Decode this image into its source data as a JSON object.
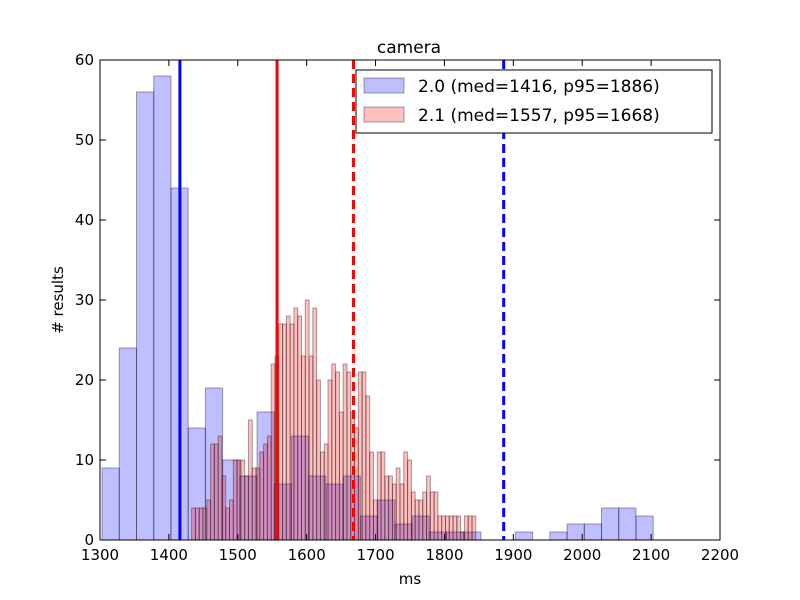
{
  "chart_data": {
    "type": "bar",
    "title": "camera",
    "xlabel": "ms",
    "ylabel": "# results",
    "xlim": [
      1300,
      2200
    ],
    "ylim": [
      0,
      60
    ],
    "xticks": [
      1300,
      1400,
      1500,
      1600,
      1700,
      1800,
      1900,
      2000,
      2100,
      2200
    ],
    "yticks": [
      0,
      10,
      20,
      30,
      40,
      50,
      60
    ],
    "grid": false,
    "legend_placement": "top-right",
    "series": [
      {
        "name": "2.0 (med=1416, p95=1886)",
        "color": "#0000ff",
        "bin_start": 1303,
        "bin_width": 25,
        "values": [
          9,
          24,
          56,
          58,
          44,
          14,
          19,
          10,
          8,
          16,
          7,
          13,
          8,
          7,
          8,
          3,
          5,
          2,
          3,
          1,
          1,
          1,
          0,
          0,
          1,
          0,
          1,
          2,
          2,
          4,
          4,
          3
        ],
        "median": 1416,
        "p95": 1886
      },
      {
        "name": "2.1 (med=1557, p95=1668)",
        "color": "#ff0000",
        "bin_start": 1433,
        "bin_width": 5.5,
        "values": [
          4,
          4,
          4,
          4,
          5,
          12,
          12,
          13,
          8,
          4,
          5,
          10,
          10,
          10,
          8,
          15,
          9,
          9,
          11,
          12,
          13,
          22,
          23,
          27,
          27,
          28,
          27,
          29,
          28,
          23,
          30,
          23,
          29,
          20,
          11,
          12,
          20,
          22,
          21,
          16,
          22,
          21,
          16,
          14,
          21,
          21,
          18,
          11,
          5,
          11,
          11,
          8,
          8,
          7,
          9,
          7,
          11,
          10,
          6,
          5,
          5,
          6,
          8,
          6,
          6,
          3,
          3,
          3,
          3,
          3,
          3,
          1,
          3,
          3,
          3
        ]
      }
    ],
    "vlines": [
      {
        "x": 1416,
        "color": "#0000ff",
        "style": "solid"
      },
      {
        "x": 1886,
        "color": "#0000ff",
        "style": "dashed"
      },
      {
        "x": 1557,
        "color": "#ff0000",
        "style": "solid"
      },
      {
        "x": 1668,
        "color": "#ff0000",
        "style": "dashed"
      }
    ]
  }
}
